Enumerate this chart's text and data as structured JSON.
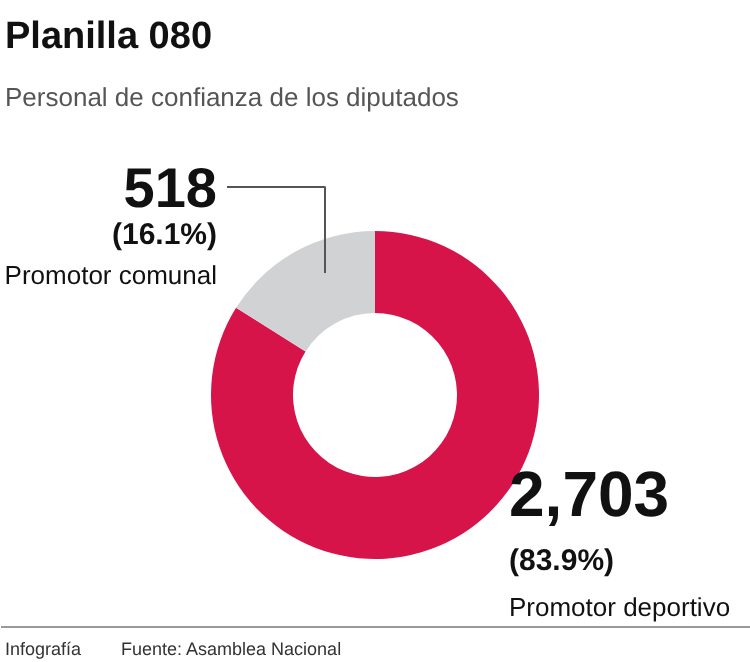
{
  "chart_data": {
    "type": "donut",
    "title": "Planilla 080",
    "subtitle": "Personal de confianza de los diputados",
    "categories": [
      "Promotor deportivo",
      "Promotor comunal"
    ],
    "values": [
      2703,
      518
    ],
    "colors": [
      "#d6144a",
      "#d1d2d4"
    ],
    "value_labels": [
      "2,703",
      "518"
    ],
    "annotations": [
      {
        "text": "(83.9%)",
        "x": "Promotor deportivo"
      },
      {
        "text": "(16.1%)",
        "x": "Promotor comunal"
      },
      "Infografía",
      "Fuente: Asamblea Nacional"
    ]
  }
}
